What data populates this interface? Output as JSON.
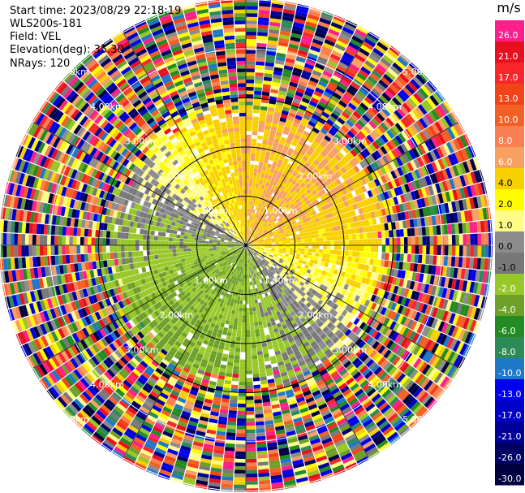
{
  "header": {
    "start_time": "Start time: 2023/08/29 22:18:19",
    "site": "WLS200s-181",
    "field": "Field: VEL",
    "elevation": "Elevation(deg): 35.30",
    "nrays": "NRays: 120"
  },
  "colorbar": {
    "unit": "m/s",
    "entries": [
      {
        "label": "26.0",
        "color": "#ff1e8c"
      },
      {
        "label": "21.0",
        "color": "#e8101e"
      },
      {
        "label": "17.0",
        "color": "#f8262a"
      },
      {
        "label": "13.0",
        "color": "#f24418"
      },
      {
        "label": "10.0",
        "color": "#f46024"
      },
      {
        "label": "8.0",
        "color": "#f88050"
      },
      {
        "label": "6.0",
        "color": "#f8a060"
      },
      {
        "label": "4.0",
        "color": "#f8d000"
      },
      {
        "label": "2.0",
        "color": "#fffc00"
      },
      {
        "label": "1.0",
        "color": "#fffc88"
      },
      {
        "label": "0.0",
        "color": "#8c8c8c"
      },
      {
        "label": "-1.0",
        "color": "#787878"
      },
      {
        "label": "-2.0",
        "color": "#98c828"
      },
      {
        "label": "-4.0",
        "color": "#6ea028"
      },
      {
        "label": "-6.0",
        "color": "#228b22"
      },
      {
        "label": "-8.0",
        "color": "#2e8b57"
      },
      {
        "label": "-10.0",
        "color": "#1e78c8"
      },
      {
        "label": "-13.0",
        "color": "#0000f0"
      },
      {
        "label": "-17.0",
        "color": "#0000c8"
      },
      {
        "label": "-21.0",
        "color": "#000098"
      },
      {
        "label": "-26.0",
        "color": "#000064"
      },
      {
        "label": "-30.0",
        "color": "#000040"
      }
    ]
  },
  "rings": {
    "labels": [
      "1.00km",
      "2.00km",
      "3.00km",
      "4.00km",
      "5.00km"
    ]
  },
  "chart_data": {
    "type": "heatmap",
    "projection": "polar (PPI scan)",
    "title": "",
    "field": "VEL",
    "units": "m/s",
    "n_rays": 120,
    "range_rings_km": [
      1,
      2,
      3,
      4,
      5
    ],
    "colorbar_levels": [
      26.0,
      21.0,
      17.0,
      13.0,
      10.0,
      8.0,
      6.0,
      4.0,
      2.0,
      1.0,
      0.0,
      -1.0,
      -2.0,
      -4.0,
      -6.0,
      -8.0,
      -10.0,
      -13.0,
      -17.0,
      -21.0,
      -26.0,
      -30.0
    ],
    "pattern": {
      "near_north_east": "positive velocities 0.0 to 6.0 (yellow/orange)",
      "near_south_west": "negative velocities -1.0 to -8.0 (green/grey)",
      "beyond_3km": "noisy / aliased values spanning full scale"
    }
  }
}
